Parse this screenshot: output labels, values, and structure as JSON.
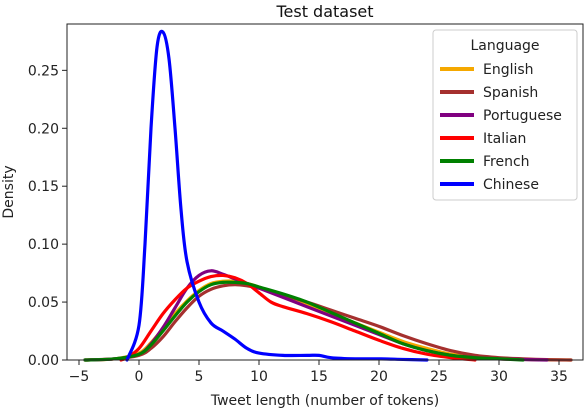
{
  "chart_data": {
    "type": "line",
    "title": "Test dataset",
    "xlabel": "Tweet length (number of tokens)",
    "ylabel": "Density",
    "xlim": [
      -6,
      37
    ],
    "ylim": [
      0,
      0.29
    ],
    "xticks": [
      -5,
      0,
      5,
      10,
      15,
      20,
      25,
      30,
      35
    ],
    "xtick_labels": [
      "−5",
      "0",
      "5",
      "10",
      "15",
      "20",
      "25",
      "30",
      "35"
    ],
    "yticks": [
      0.0,
      0.05,
      0.1,
      0.15,
      0.2,
      0.25
    ],
    "ytick_labels": [
      "0.00",
      "0.05",
      "0.10",
      "0.15",
      "0.20",
      "0.25"
    ],
    "grid": false,
    "legend": {
      "title": "Language",
      "placement": "top-right"
    },
    "series": [
      {
        "name": "English",
        "color": "#f5a800",
        "x": [
          -4.5,
          -2,
          0,
          1,
          2,
          3,
          4,
          5,
          6,
          7,
          8,
          9,
          10,
          12,
          14,
          16,
          18,
          20,
          22,
          24,
          26,
          28,
          30,
          32,
          34,
          36
        ],
        "y": [
          0.0,
          0.001,
          0.006,
          0.015,
          0.027,
          0.04,
          0.051,
          0.06,
          0.066,
          0.068,
          0.068,
          0.066,
          0.063,
          0.055,
          0.048,
          0.04,
          0.032,
          0.024,
          0.016,
          0.01,
          0.005,
          0.003,
          0.001,
          0.0005,
          0.0002,
          0.0
        ]
      },
      {
        "name": "Spanish",
        "color": "#a5302e",
        "x": [
          -4.5,
          -2,
          0,
          1,
          2,
          3,
          4,
          5,
          6,
          7,
          8,
          9,
          10,
          12,
          14,
          16,
          18,
          20,
          22,
          24,
          26,
          28,
          30,
          32,
          34,
          36
        ],
        "y": [
          0.0,
          0.001,
          0.004,
          0.01,
          0.02,
          0.033,
          0.045,
          0.055,
          0.061,
          0.064,
          0.065,
          0.064,
          0.062,
          0.056,
          0.05,
          0.043,
          0.036,
          0.029,
          0.021,
          0.014,
          0.008,
          0.004,
          0.002,
          0.001,
          0.0003,
          0.0
        ]
      },
      {
        "name": "Portuguese",
        "color": "#800080",
        "x": [
          -4.5,
          -2,
          0,
          1,
          2,
          3,
          4,
          5,
          6,
          7,
          8,
          9,
          10,
          12,
          14,
          16,
          18,
          20,
          22,
          24,
          26,
          28,
          30,
          32,
          34
        ],
        "y": [
          0.0,
          0.001,
          0.005,
          0.014,
          0.028,
          0.045,
          0.062,
          0.073,
          0.077,
          0.074,
          0.07,
          0.066,
          0.062,
          0.054,
          0.046,
          0.038,
          0.03,
          0.022,
          0.014,
          0.008,
          0.004,
          0.002,
          0.001,
          0.0004,
          0.0
        ]
      },
      {
        "name": "Italian",
        "color": "#ff0000",
        "x": [
          -1.5,
          -1,
          0,
          1,
          2,
          3,
          4,
          5,
          6,
          7,
          8,
          9,
          10,
          11,
          12,
          14,
          16,
          18,
          20,
          22,
          24,
          26,
          28
        ],
        "y": [
          0.0,
          0.002,
          0.01,
          0.025,
          0.04,
          0.052,
          0.062,
          0.068,
          0.072,
          0.073,
          0.071,
          0.066,
          0.058,
          0.05,
          0.046,
          0.04,
          0.033,
          0.025,
          0.017,
          0.01,
          0.005,
          0.002,
          0.0
        ]
      },
      {
        "name": "French",
        "color": "#008000",
        "x": [
          -4.5,
          -2,
          0,
          1,
          2,
          3,
          4,
          5,
          6,
          7,
          8,
          9,
          10,
          12,
          14,
          16,
          18,
          20,
          22,
          24,
          26,
          28,
          30,
          32
        ],
        "y": [
          0.0,
          0.001,
          0.005,
          0.013,
          0.025,
          0.038,
          0.05,
          0.059,
          0.065,
          0.067,
          0.067,
          0.066,
          0.063,
          0.057,
          0.05,
          0.041,
          0.032,
          0.023,
          0.014,
          0.008,
          0.004,
          0.002,
          0.001,
          0.0
        ]
      },
      {
        "name": "Chinese",
        "color": "#0000ff",
        "x": [
          -1,
          0,
          0.5,
          1,
          1.5,
          2,
          2.5,
          3,
          3.5,
          4,
          5,
          6,
          7,
          8,
          9,
          10,
          12,
          14,
          15,
          16,
          18,
          20,
          22,
          24
        ],
        "y": [
          0.0,
          0.03,
          0.1,
          0.2,
          0.27,
          0.283,
          0.26,
          0.2,
          0.13,
          0.085,
          0.05,
          0.032,
          0.025,
          0.018,
          0.01,
          0.006,
          0.004,
          0.004,
          0.004,
          0.002,
          0.001,
          0.001,
          0.0005,
          0.0
        ]
      }
    ]
  }
}
